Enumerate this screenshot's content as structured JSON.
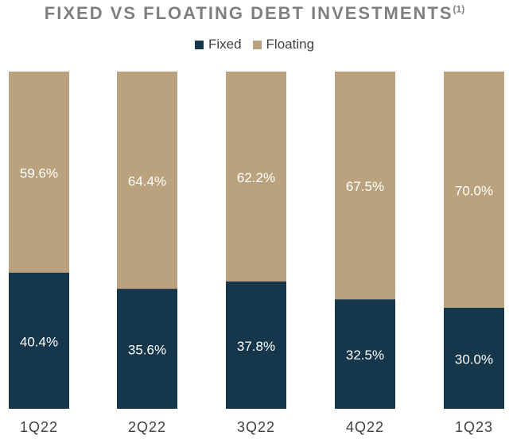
{
  "chart_data": {
    "type": "bar",
    "stacked": true,
    "percent": true,
    "title": "FIXED VS FLOATING DEBT INVESTMENTS",
    "title_superscript": "(1)",
    "categories": [
      "1Q22",
      "2Q22",
      "3Q22",
      "4Q22",
      "1Q23"
    ],
    "series": [
      {
        "name": "Fixed",
        "values": [
          40.4,
          35.6,
          37.8,
          32.5,
          30.0
        ],
        "labels": [
          "40.4%",
          "35.6%",
          "37.8%",
          "32.5%",
          "30.0%"
        ],
        "color": "#16374b"
      },
      {
        "name": "Floating",
        "values": [
          59.6,
          64.4,
          62.2,
          67.5,
          70.0
        ],
        "labels": [
          "59.6%",
          "64.4%",
          "62.2%",
          "67.5%",
          "70.0%"
        ],
        "color": "#b9a27d"
      }
    ],
    "ylim": [
      0,
      100
    ],
    "legend": "top-center",
    "grid": false,
    "colors": {
      "background": "#ffffff",
      "title": "#7f7f7f",
      "label_text": "#ffffff",
      "axis_text": "#404040"
    }
  }
}
